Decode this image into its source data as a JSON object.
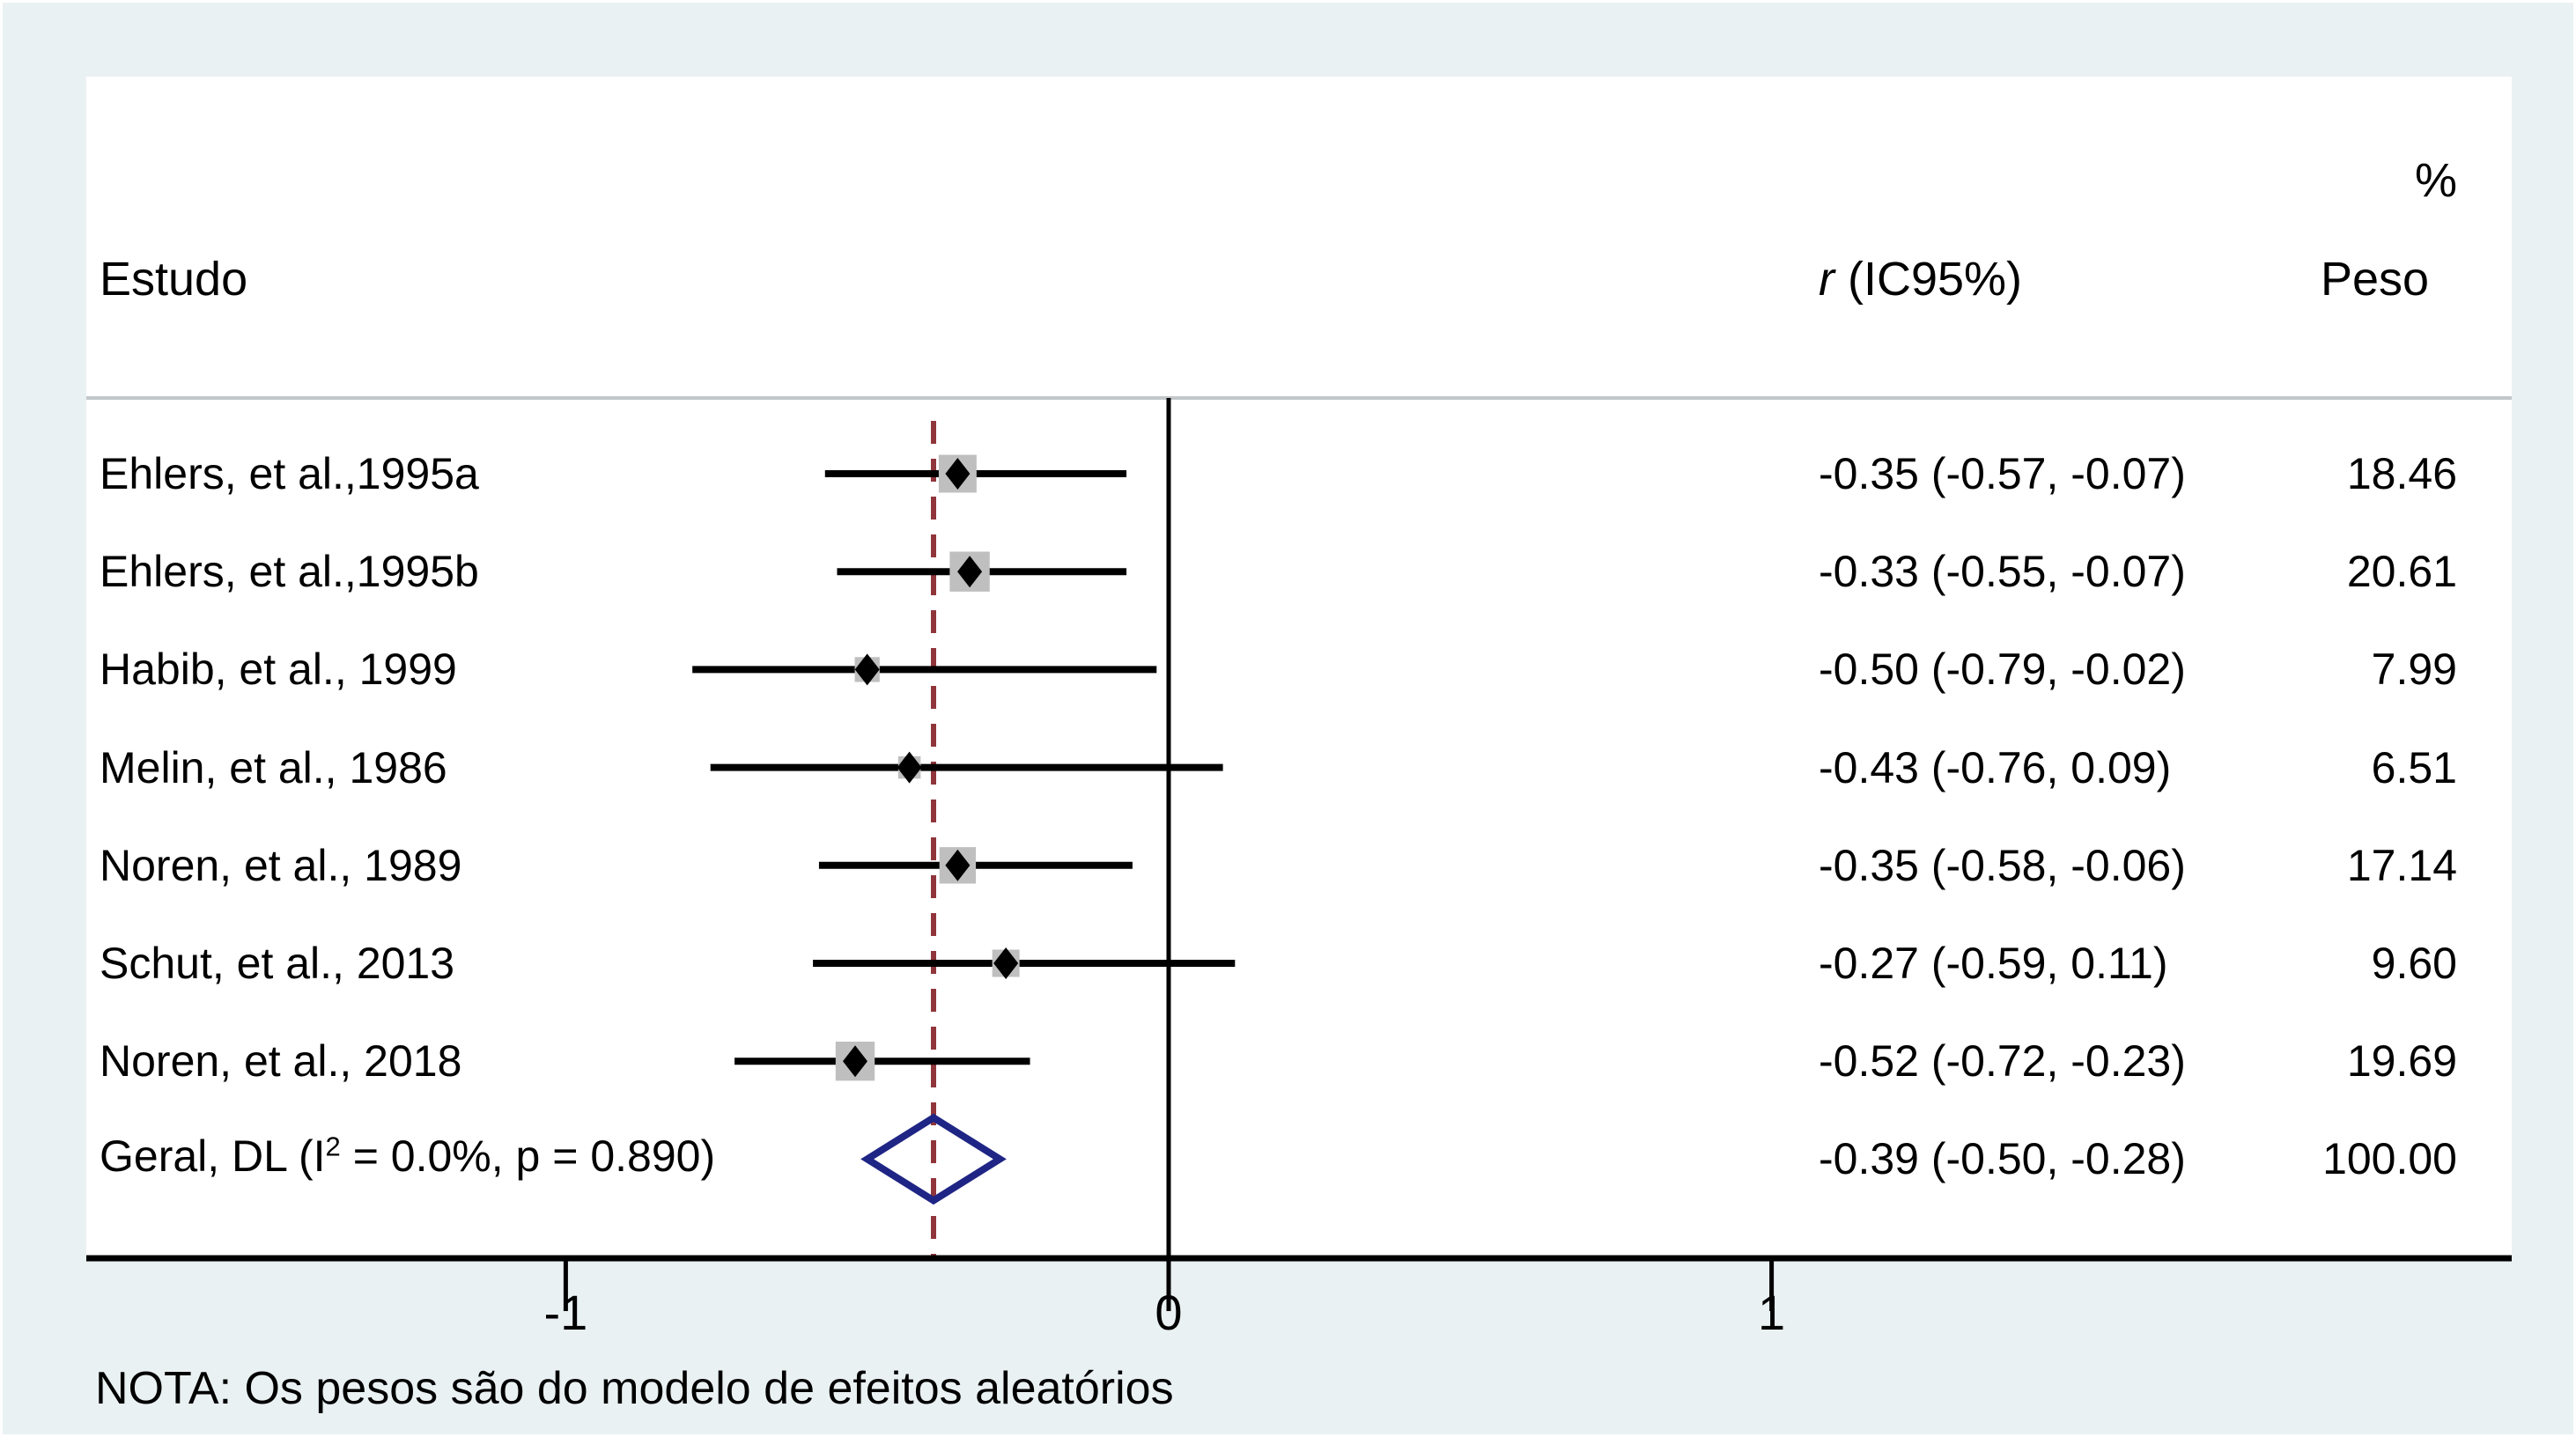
{
  "headers": {
    "study": "Estudo",
    "effect_italic": "r",
    "effect_rest": " (IC95%)",
    "percent": "%",
    "weight": "Peso"
  },
  "note": "NOTA: Os pesos são do modelo de efeitos aleatórios",
  "colors": {
    "background": "#eaf1f3",
    "panel": "#ffffff",
    "separator": "#c2c7ca",
    "axis": "#000000",
    "ci_line": "#000000",
    "marker": "#000000",
    "weight_square": "#bfbfbf",
    "dashed_line": "#90353b",
    "overall_diamond": "#1f2585"
  },
  "chart_data": {
    "type": "forest",
    "x_ticks": [
      -1,
      0,
      1
    ],
    "x_tick_labels": [
      "-1",
      "0",
      "1"
    ],
    "xlim": [
      -1.79,
      2.22
    ],
    "zero_line_at": 0,
    "dashed_line_at": -0.39,
    "studies": [
      {
        "label": "Ehlers, et al.,1995a",
        "r": -0.35,
        "ci_low": -0.57,
        "ci_high": -0.07,
        "estimate_text": "-0.35 (-0.57, -0.07)",
        "weight": 18.46,
        "weight_text": "18.46"
      },
      {
        "label": "Ehlers, et al.,1995b",
        "r": -0.33,
        "ci_low": -0.55,
        "ci_high": -0.07,
        "estimate_text": "-0.33 (-0.55, -0.07)",
        "weight": 20.61,
        "weight_text": "20.61"
      },
      {
        "label": "Habib, et al., 1999",
        "r": -0.5,
        "ci_low": -0.79,
        "ci_high": -0.02,
        "estimate_text": "-0.50 (-0.79, -0.02)",
        "weight": 7.99,
        "weight_text": "7.99"
      },
      {
        "label": "Melin, et al., 1986",
        "r": -0.43,
        "ci_low": -0.76,
        "ci_high": 0.09,
        "estimate_text": "-0.43 (-0.76, 0.09)",
        "weight": 6.51,
        "weight_text": "6.51"
      },
      {
        "label": "Noren, et al., 1989",
        "r": -0.35,
        "ci_low": -0.58,
        "ci_high": -0.06,
        "estimate_text": "-0.35 (-0.58, -0.06)",
        "weight": 17.14,
        "weight_text": "17.14"
      },
      {
        "label": "Schut, et al., 2013",
        "r": -0.27,
        "ci_low": -0.59,
        "ci_high": 0.11,
        "estimate_text": "-0.27 (-0.59, 0.11)",
        "weight": 9.6,
        "weight_text": "9.60"
      },
      {
        "label": "Noren, et al., 2018",
        "r": -0.52,
        "ci_low": -0.72,
        "ci_high": -0.23,
        "estimate_text": "-0.52 (-0.72, -0.23)",
        "weight": 19.69,
        "weight_text": "19.69"
      }
    ],
    "overall": {
      "label_pre": "Geral, DL (I",
      "label_sup": "2",
      "label_post": " = 0.0%, p = 0.890)",
      "r": -0.39,
      "ci_low": -0.5,
      "ci_high": -0.28,
      "estimate_text": "-0.39 (-0.50, -0.28)",
      "weight_text": "100.00"
    }
  }
}
